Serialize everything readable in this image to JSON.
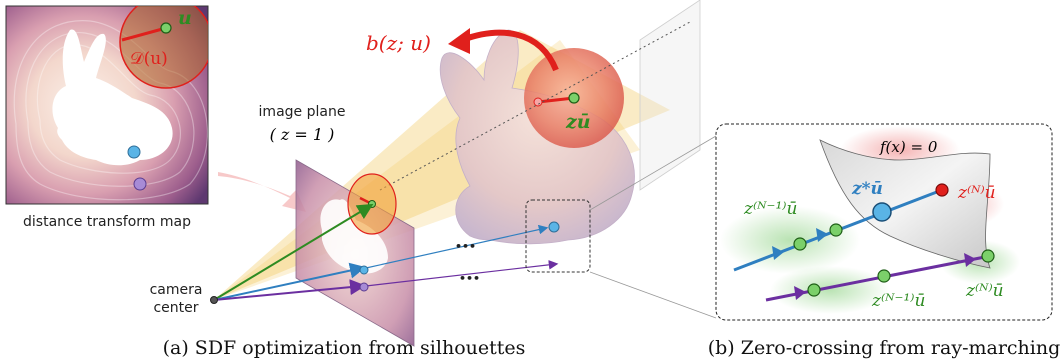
{
  "labels": {
    "distance_map": "distance transform map",
    "image_plane": "image plane",
    "plane_eq": "( z = 1 )",
    "camera_line1": "camera",
    "camera_line2": "center",
    "u": "u",
    "D_u": "𝒟(u)",
    "b_zu": "b(z; u)",
    "z_ubar": "zū",
    "f_eq": "f(x) = 0",
    "z_star": "z*ū",
    "zN_top": "z⁽ᴺ⁾ū",
    "zN1_top": "z⁽ᴺ⁻¹⁾ū",
    "zN_bottom": "z⁽ᴺ⁾ū",
    "zN1_bottom": "z⁽ᴺ⁻¹⁾ū",
    "ellipsis": "•••"
  },
  "captions": {
    "a": "(a) SDF optimization from silhouettes",
    "b": "(b) Zero-crossing from ray-marching"
  },
  "colors": {
    "red": "#e0201c",
    "green": "#2e8b22",
    "blue": "#2f7fc0",
    "purple": "#6b2fa0",
    "cone": "#f2c65a"
  }
}
